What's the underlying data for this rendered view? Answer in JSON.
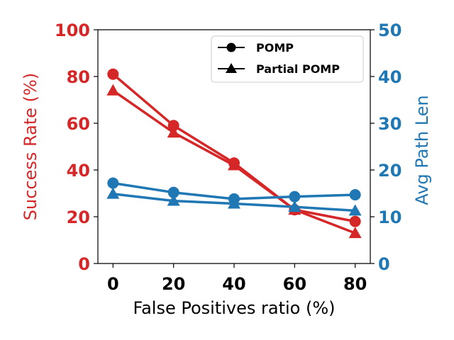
{
  "chart_data": {
    "type": "line",
    "title": "",
    "xlabel": "False Positives ratio (%)",
    "ylabel_left": "Success Rate (%)",
    "ylabel_right": "Avg Path Len",
    "x": [
      0,
      20,
      40,
      60,
      80
    ],
    "x_tick_labels": [
      "0",
      "20",
      "40",
      "60",
      "80"
    ],
    "ylim_left": [
      0,
      100
    ],
    "ylim_right": [
      0,
      50
    ],
    "y_ticks_left": [
      "0",
      "20",
      "40",
      "60",
      "80",
      "100"
    ],
    "y_ticks_right": [
      "0",
      "10",
      "20",
      "30",
      "40",
      "50"
    ],
    "grid": false,
    "legend": {
      "position": "top-right",
      "entries": [
        {
          "label": "POMP",
          "marker": "circle"
        },
        {
          "label": "Partial POMP",
          "marker": "triangle"
        }
      ]
    },
    "colors": {
      "success": "#d62728",
      "path": "#1f77b4",
      "axis": "#000000"
    },
    "series": [
      {
        "name": "POMP success rate",
        "axis": "left",
        "marker": "circle",
        "color": "#d62728",
        "values": [
          81,
          59,
          43,
          23,
          18
        ]
      },
      {
        "name": "Partial POMP success rate",
        "axis": "left",
        "marker": "triangle",
        "color": "#d62728",
        "values": [
          74,
          56,
          42,
          23,
          13
        ]
      },
      {
        "name": "POMP avg path len",
        "axis": "right",
        "marker": "circle",
        "color": "#1f77b4",
        "values": [
          17.2,
          15.2,
          13.8,
          14.3,
          14.7
        ]
      },
      {
        "name": "Partial POMP avg path len",
        "axis": "right",
        "marker": "triangle",
        "color": "#1f77b4",
        "values": [
          14.9,
          13.4,
          12.8,
          12.1,
          11.3
        ]
      }
    ]
  }
}
